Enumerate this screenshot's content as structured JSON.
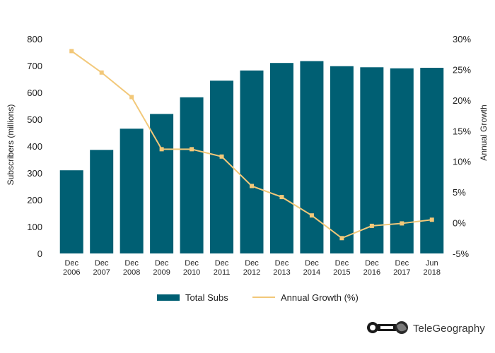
{
  "chart_data": {
    "type": "bar",
    "categories": [
      [
        "Dec",
        "2006"
      ],
      [
        "Dec",
        "2007"
      ],
      [
        "Dec",
        "2008"
      ],
      [
        "Dec",
        "2009"
      ],
      [
        "Dec",
        "2010"
      ],
      [
        "Dec",
        "2011"
      ],
      [
        "Dec",
        "2012"
      ],
      [
        "Dec",
        "2013"
      ],
      [
        "Dec",
        "2014"
      ],
      [
        "Dec",
        "2015"
      ],
      [
        "Dec",
        "2016"
      ],
      [
        "Dec",
        "2017"
      ],
      [
        "Jun",
        "2018"
      ]
    ],
    "series": [
      {
        "name": "Total Subs",
        "type": "bar",
        "axis": "left",
        "color": "#005f73",
        "values": [
          310,
          386,
          465,
          520,
          582,
          644,
          682,
          710,
          717,
          698,
          694,
          690,
          692
        ]
      },
      {
        "name": "Annual Growth (%)",
        "type": "line",
        "axis": "right",
        "color": "#f2c879",
        "values": [
          28,
          24.5,
          20.5,
          12,
          12,
          10.8,
          6,
          4.2,
          1.2,
          -2.5,
          -0.5,
          -0.1,
          0.5
        ]
      }
    ],
    "ylabel": "Subscribers (millions)",
    "ylabel_right": "Annual Growth",
    "ylim": [
      0,
      800
    ],
    "ylim_right": [
      -5,
      30
    ],
    "yticks": [
      "0",
      "100",
      "200",
      "300",
      "400",
      "500",
      "600",
      "700",
      "800"
    ],
    "yticks_right": [
      "-5%",
      "0%",
      "5%",
      "10%",
      "15%",
      "20%",
      "25%",
      "30%"
    ],
    "grid": false,
    "legend_position": "bottom"
  },
  "brand": {
    "name": "TeleGeography",
    "logo_icon": "telegeography-logo-icon"
  }
}
